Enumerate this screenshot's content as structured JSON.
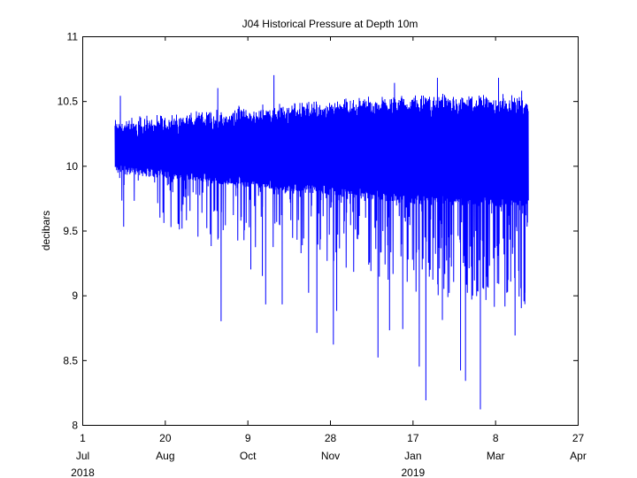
{
  "chart_data": {
    "type": "line",
    "title": "J04 Historical Pressure at Depth 10m",
    "xlabel": "",
    "ylabel": "decibars",
    "ylim": [
      8,
      11
    ],
    "yticks": [
      "8",
      "8.5",
      "9",
      "9.5",
      "10",
      "10.5",
      "11"
    ],
    "xlim": [
      "2018-07-01",
      "2019-04-27"
    ],
    "xticks": [
      {
        "day": "1",
        "month": "Jul",
        "year": "2018",
        "date": "2018-07-01"
      },
      {
        "day": "20",
        "month": "Aug",
        "year": "",
        "date": "2018-08-20"
      },
      {
        "day": "9",
        "month": "Oct",
        "year": "",
        "date": "2018-10-09"
      },
      {
        "day": "28",
        "month": "Nov",
        "year": "",
        "date": "2018-11-28"
      },
      {
        "day": "17",
        "month": "Jan",
        "year": "2019",
        "date": "2019-01-17"
      },
      {
        "day": "8",
        "month": "Mar",
        "year": "",
        "date": "2019-03-08"
      },
      {
        "day": "27",
        "month": "Apr",
        "year": "",
        "date": "2019-04-27"
      }
    ],
    "grid": false,
    "line_color": "#0000ff",
    "series": [
      {
        "name": "",
        "data_start": "2018-07-21",
        "data_end": "2019-03-28",
        "typical_level": 10.1,
        "spikes": [
          {
            "x": "2018-07-26",
            "y": 9.53
          },
          {
            "x": "2018-07-24",
            "y": 10.54
          },
          {
            "x": "2018-08-31",
            "y": 9.7
          },
          {
            "x": "2018-09-17",
            "y": 9.38
          },
          {
            "x": "2018-09-23",
            "y": 8.8
          },
          {
            "x": "2018-09-21",
            "y": 10.6
          },
          {
            "x": "2018-10-11",
            "y": 9.2
          },
          {
            "x": "2018-10-20",
            "y": 8.93
          },
          {
            "x": "2018-10-18",
            "y": 9.15
          },
          {
            "x": "2018-10-25",
            "y": 10.7
          },
          {
            "x": "2018-10-30",
            "y": 8.93
          },
          {
            "x": "2018-11-15",
            "y": 9.02
          },
          {
            "x": "2018-11-20",
            "y": 8.71
          },
          {
            "x": "2018-11-30",
            "y": 8.62
          },
          {
            "x": "2018-12-02",
            "y": 8.88
          },
          {
            "x": "2018-12-27",
            "y": 8.52
          },
          {
            "x": "2019-01-03",
            "y": 8.73
          },
          {
            "x": "2019-01-11",
            "y": 8.74
          },
          {
            "x": "2019-01-06",
            "y": 10.64
          },
          {
            "x": "2019-01-21",
            "y": 8.45
          },
          {
            "x": "2019-01-25",
            "y": 8.19
          },
          {
            "x": "2019-02-01",
            "y": 10.68
          },
          {
            "x": "2019-02-04",
            "y": 8.81
          },
          {
            "x": "2019-02-15",
            "y": 8.42
          },
          {
            "x": "2019-02-18",
            "y": 8.34
          },
          {
            "x": "2019-02-27",
            "y": 8.12
          },
          {
            "x": "2019-03-01",
            "y": 9.05
          },
          {
            "x": "2019-03-10",
            "y": 10.68
          },
          {
            "x": "2019-03-15",
            "y": 9.02
          },
          {
            "x": "2019-03-20",
            "y": 8.69
          },
          {
            "x": "2019-03-26",
            "y": 9.02
          },
          {
            "x": "2019-03-24",
            "y": 10.58
          }
        ]
      }
    ]
  }
}
